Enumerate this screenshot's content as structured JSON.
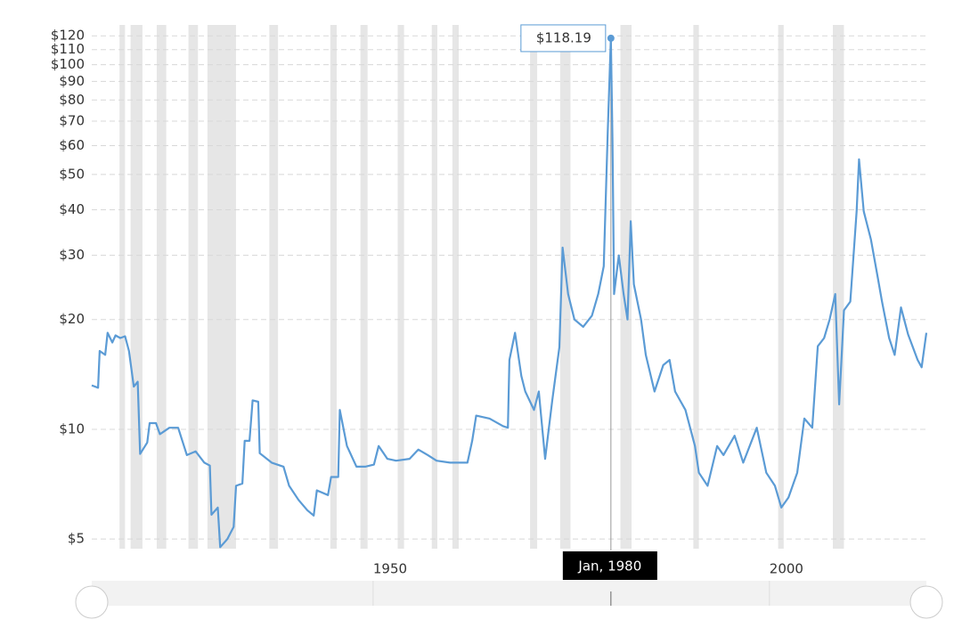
{
  "chart_data": {
    "type": "line",
    "log_scale": true,
    "grid": true,
    "color": "#5b9bd5",
    "recession_color": "#e6e6e6",
    "xlim": [
      1914.5,
      2019.8
    ],
    "ylim": [
      4.6,
      130
    ],
    "xticks": [
      1950,
      2000
    ],
    "yticks": [
      {
        "value": 5,
        "label": "$5"
      },
      {
        "value": 10,
        "label": "$10"
      },
      {
        "value": 20,
        "label": "$20"
      },
      {
        "value": 30,
        "label": "$30"
      },
      {
        "value": 40,
        "label": "$40"
      },
      {
        "value": 50,
        "label": "$50"
      },
      {
        "value": 60,
        "label": "$60"
      },
      {
        "value": 70,
        "label": "$70"
      },
      {
        "value": 80,
        "label": "$80"
      },
      {
        "value": 90,
        "label": "$90"
      },
      {
        "value": 100,
        "label": "$100"
      },
      {
        "value": 110,
        "label": "$110"
      },
      {
        "value": 120,
        "label": "$120"
      }
    ],
    "recessions": [
      [
        1918.0,
        1918.7
      ],
      [
        1919.4,
        1920.9
      ],
      [
        1922.7,
        1923.9
      ],
      [
        1926.7,
        1927.9
      ],
      [
        1929.1,
        1932.7
      ],
      [
        1936.9,
        1938.0
      ],
      [
        1944.6,
        1945.4
      ],
      [
        1948.4,
        1949.3
      ],
      [
        1953.1,
        1953.9
      ],
      [
        1957.4,
        1958.1
      ],
      [
        1960.0,
        1960.8
      ],
      [
        1969.8,
        1970.7
      ],
      [
        1973.6,
        1974.9
      ],
      [
        1981.2,
        1982.6
      ],
      [
        1990.4,
        1991.1
      ],
      [
        2001.1,
        2001.8
      ],
      [
        2008.0,
        2009.4
      ]
    ],
    "x": [
      1914.5,
      1915.3,
      1915.5,
      1916.2,
      1916.5,
      1917.1,
      1917.5,
      1918.1,
      1918.7,
      1919.2,
      1919.8,
      1920.3,
      1920.6,
      1921.5,
      1921.8,
      1922.6,
      1923.1,
      1924.3,
      1925.4,
      1926.0,
      1926.5,
      1927.6,
      1928.7,
      1929.4,
      1929.6,
      1930.4,
      1930.7,
      1931.6,
      1932.4,
      1932.7,
      1933.5,
      1933.8,
      1934.4,
      1934.8,
      1935.5,
      1935.7,
      1937.2,
      1938.7,
      1939.4,
      1940.6,
      1941.7,
      1942.5,
      1942.9,
      1944.3,
      1944.7,
      1945.6,
      1945.8,
      1946.7,
      1947.9,
      1949.0,
      1950.1,
      1950.7,
      1951.8,
      1952.9,
      1954.6,
      1955.7,
      1956.9,
      1958.0,
      1959.7,
      1961.9,
      1962.5,
      1963.0,
      1964.7,
      1966.4,
      1967.0,
      1967.2,
      1967.9,
      1968.7,
      1969.2,
      1970.3,
      1970.9,
      1971.7,
      1972.6,
      1973.5,
      1973.9,
      1974.6,
      1975.4,
      1976.5,
      1977.6,
      1978.4,
      1979.1,
      1979.6,
      1980.0,
      1980.2,
      1980.4,
      1981.0,
      1981.6,
      1982.1,
      1982.5,
      1982.9,
      1983.8,
      1984.4,
      1985.5,
      1986.6,
      1987.4,
      1988.1,
      1989.4,
      1990.6,
      1991.1,
      1992.2,
      1993.4,
      1994.2,
      1995.6,
      1996.7,
      1998.4,
      1999.6,
      2000.7,
      2001.5,
      2002.4,
      2003.5,
      2004.4,
      2005.4,
      2006.1,
      2006.9,
      2007.6,
      2008.3,
      2008.8,
      2009.4,
      2010.2,
      2011.0,
      2011.3,
      2011.9,
      2012.8,
      2013.6,
      2014.2,
      2015.1,
      2015.8,
      2016.6,
      2017.5,
      2018.7,
      2019.2,
      2019.8
    ],
    "values": [
      13.2,
      13.0,
      16.4,
      16.0,
      18.4,
      17.3,
      18.1,
      17.8,
      18.0,
      16.4,
      13.1,
      13.5,
      8.56,
      9.2,
      10.4,
      10.4,
      9.7,
      10.1,
      10.1,
      9.2,
      8.5,
      8.7,
      8.1,
      7.95,
      5.83,
      6.1,
      4.75,
      5.0,
      5.4,
      7.0,
      7.1,
      9.3,
      9.3,
      12.0,
      11.9,
      8.6,
      8.1,
      7.9,
      7.0,
      6.4,
      6.0,
      5.8,
      6.8,
      6.6,
      7.4,
      7.4,
      11.3,
      9.0,
      7.9,
      7.9,
      8.0,
      9.0,
      8.3,
      8.2,
      8.3,
      8.8,
      8.5,
      8.2,
      8.1,
      8.1,
      9.3,
      10.9,
      10.7,
      10.2,
      10.1,
      15.5,
      18.4,
      14.0,
      12.7,
      11.3,
      12.7,
      8.3,
      12.0,
      16.8,
      31.5,
      23.5,
      20.0,
      19.1,
      20.5,
      23.5,
      28.0,
      65.6,
      118.19,
      62.0,
      23.5,
      30.0,
      23.5,
      20.0,
      37.2,
      25.0,
      20.0,
      16.0,
      12.7,
      15.0,
      15.5,
      12.7,
      11.3,
      9.0,
      7.6,
      7.0,
      9.0,
      8.5,
      9.6,
      8.1,
      10.1,
      7.6,
      7.0,
      6.1,
      6.5,
      7.6,
      10.7,
      10.1,
      16.9,
      17.8,
      20.0,
      23.5,
      11.7,
      21.2,
      22.4,
      39.6,
      55.0,
      39.6,
      33.2,
      26.6,
      22.4,
      17.8,
      16.0,
      21.6,
      18.2,
      15.5,
      14.8,
      18.4
    ],
    "annotation": {
      "x": 1980.0,
      "value": 118.19,
      "label": "$118.19",
      "x_label": "Jan, 1980"
    }
  }
}
